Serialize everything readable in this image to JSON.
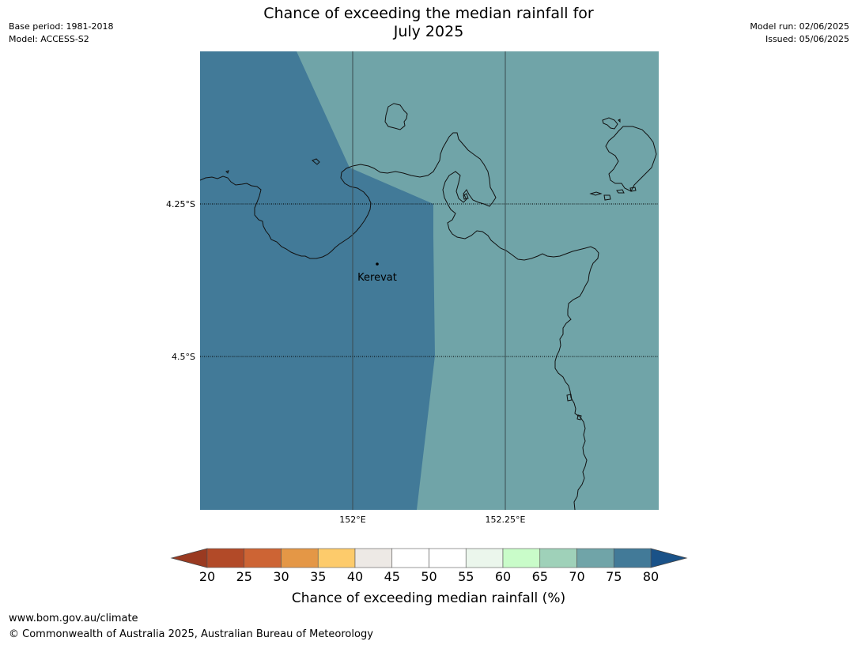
{
  "header": {
    "base_period": "Base period: 1981-2018",
    "model": "Model: ACCESS-S2",
    "title_line1": "Chance of exceeding the median rainfall for",
    "title_line2": "July 2025",
    "model_run": "Model run: 02/06/2025",
    "issued": "Issued: 05/06/2025"
  },
  "map": {
    "lat_labels": [
      "4.25°S",
      "4.5°S"
    ],
    "lon_labels": [
      "152°E",
      "152.25°E"
    ],
    "place_label": "Kerevat",
    "region_colors": {
      "west": "#427a98",
      "east": "#70a4a8"
    }
  },
  "colorbar": {
    "title": "Chance of exceeding median rainfall (%)",
    "tick_labels": [
      "20",
      "25",
      "30",
      "35",
      "40",
      "45",
      "50",
      "55",
      "60",
      "65",
      "70",
      "75",
      "80"
    ],
    "under_color": "#9a3a21",
    "over_color": "#1a5288",
    "bins": [
      "#b24a28",
      "#cd6434",
      "#e49746",
      "#fdcb6b",
      "#ede9e5",
      "#ffffff",
      "#ffffff",
      "#ebf6ec",
      "#c9fcc9",
      "#9fd1b9",
      "#70a4a8",
      "#427a98"
    ]
  },
  "footer": {
    "url": "www.bom.gov.au/climate",
    "copyright": "© Commonwealth of Australia 2025, Australian Bureau of Meteorology"
  }
}
